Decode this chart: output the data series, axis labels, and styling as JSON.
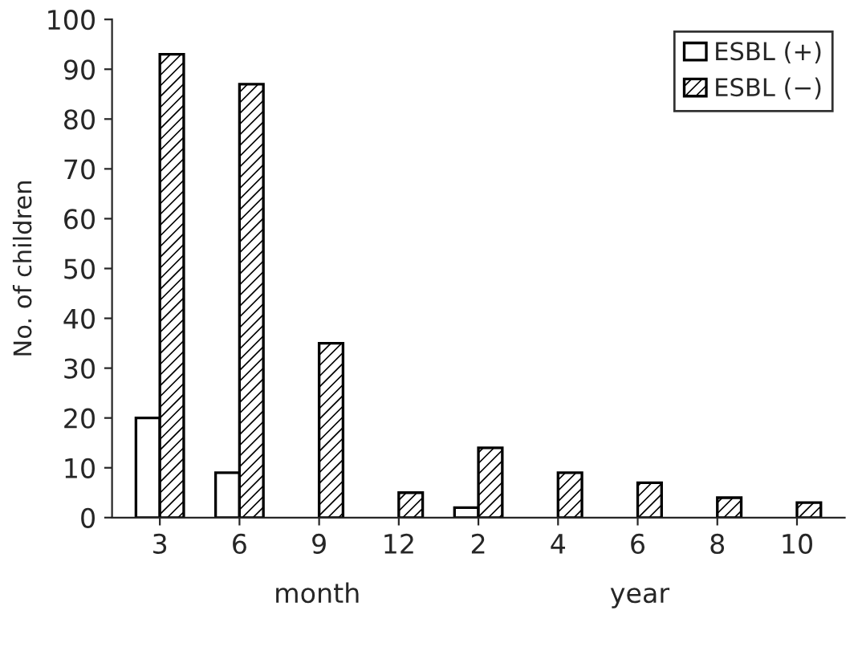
{
  "chart_data": {
    "type": "bar",
    "ylabel": "No. of children",
    "categories": [
      "3",
      "6",
      "9",
      "12",
      "2",
      "4",
      "6",
      "8",
      "10"
    ],
    "series": [
      {
        "name": "ESBL (+)",
        "color": "#ffffff",
        "values": [
          20,
          9,
          0,
          0,
          2,
          0,
          0,
          0,
          0
        ]
      },
      {
        "name": "ESBL (−)",
        "color": "#000000",
        "values": [
          93,
          87,
          35,
          5,
          14,
          9,
          7,
          4,
          3
        ]
      }
    ],
    "ylim": [
      0,
      100
    ],
    "yticks": [
      0,
      10,
      20,
      30,
      40,
      50,
      60,
      70,
      80,
      90,
      100
    ],
    "annotations": [
      "month",
      "year"
    ],
    "legend": "top right",
    "grid": false
  }
}
